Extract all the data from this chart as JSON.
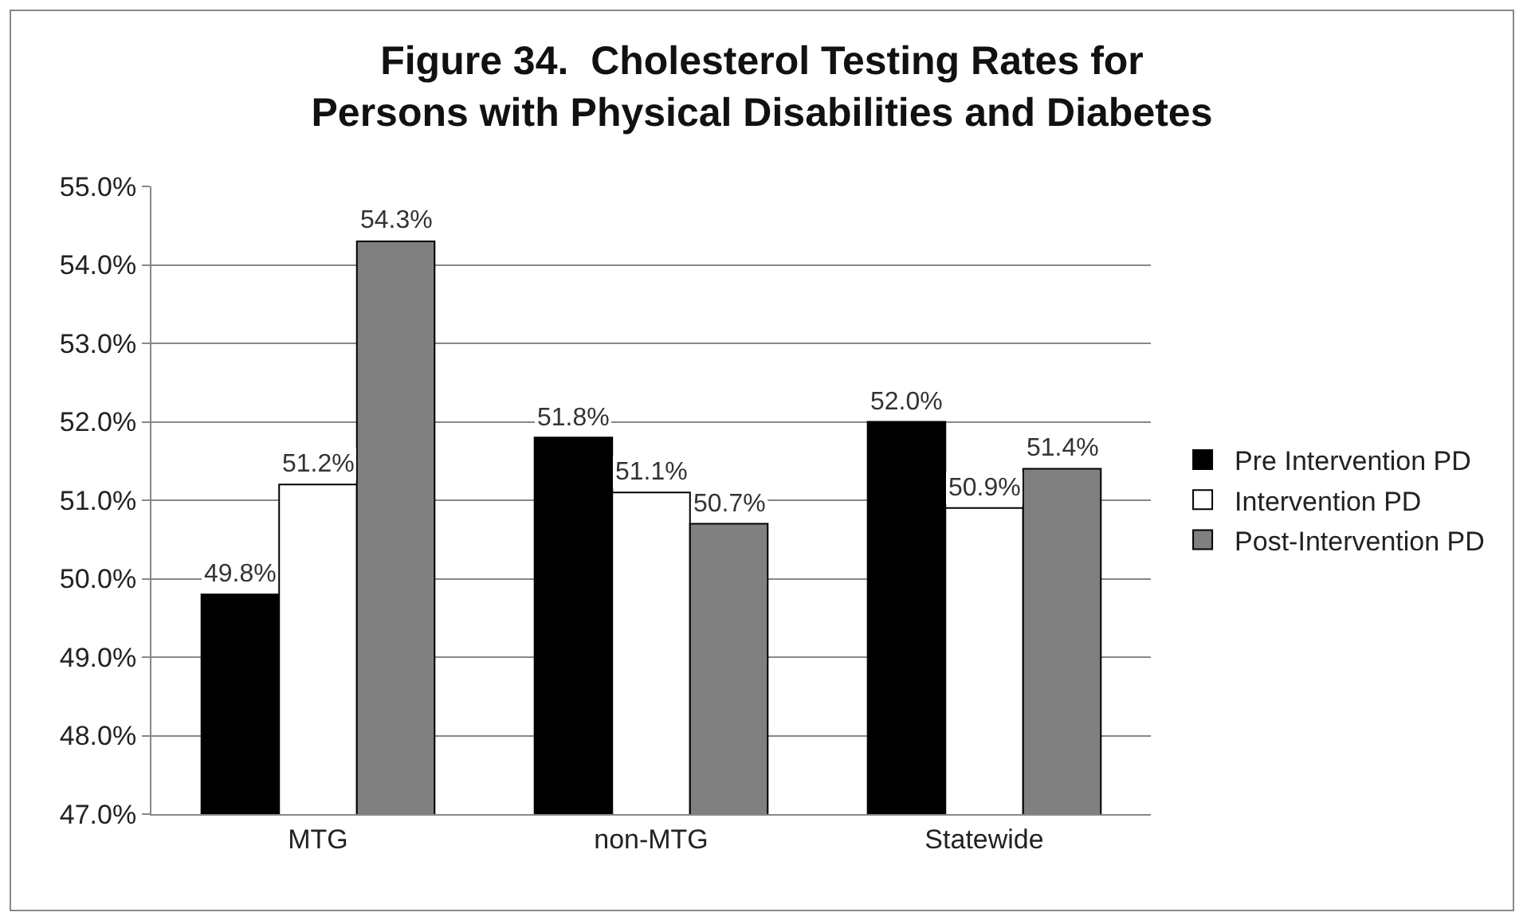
{
  "chart_data": {
    "type": "bar",
    "title": "Figure 34.  Cholesterol Testing Rates for Persons with Physical Disabilities and Diabetes",
    "categories": [
      "MTG",
      "non-MTG",
      "Statewide"
    ],
    "series": [
      {
        "name": "Pre Intervention PD",
        "color": "#000000",
        "values": [
          49.8,
          51.8,
          52.0
        ],
        "value_labels": [
          "49.8%",
          "51.8%",
          "52.0%"
        ]
      },
      {
        "name": "Intervention PD",
        "color": "#ffffff",
        "values": [
          51.2,
          51.1,
          50.9
        ],
        "value_labels": [
          "51.2%",
          "51.1%",
          "50.9%"
        ]
      },
      {
        "name": "Post-Intervention PD",
        "color": "#808080",
        "values": [
          54.3,
          50.7,
          51.4
        ],
        "value_labels": [
          "54.3%",
          "50.7%",
          "51.4%"
        ]
      }
    ],
    "ylim": [
      47,
      55
    ],
    "yticks": [
      {
        "value": 47,
        "label": "47.0%"
      },
      {
        "value": 48,
        "label": "48.0%"
      },
      {
        "value": 49,
        "label": "49.0%"
      },
      {
        "value": 50,
        "label": "50.0%"
      },
      {
        "value": 51,
        "label": "51.0%"
      },
      {
        "value": 52,
        "label": "52.0%"
      },
      {
        "value": 53,
        "label": "53.0%"
      },
      {
        "value": 54,
        "label": "54.0%"
      },
      {
        "value": 55,
        "label": "55.0%"
      }
    ],
    "grid": "y",
    "legend": "right"
  }
}
